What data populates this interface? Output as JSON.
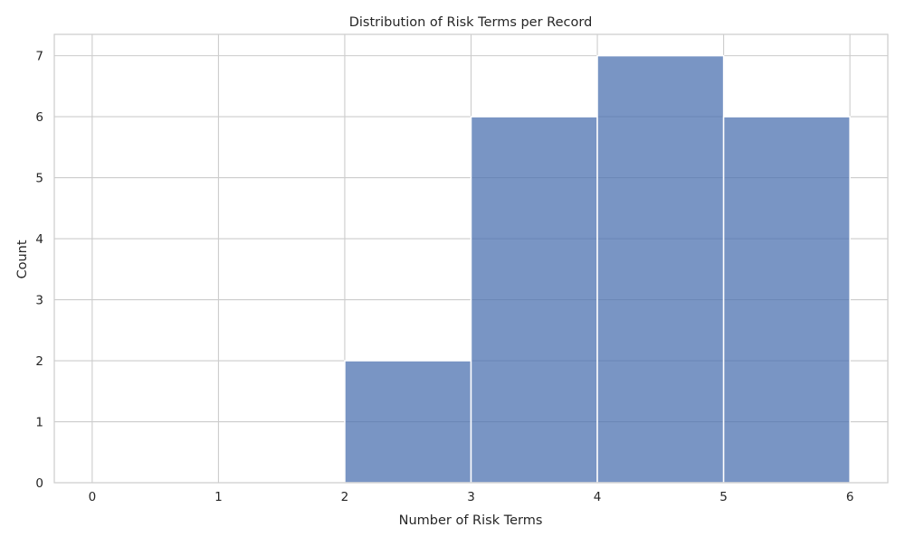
{
  "chart_data": {
    "type": "bar",
    "title": "Distribution of Risk Terms per Record",
    "xlabel": "Number of Risk Terms",
    "ylabel": "Count",
    "x_ticks": [
      "0",
      "1",
      "2",
      "3",
      "4",
      "5",
      "6"
    ],
    "y_ticks": [
      "0",
      "1",
      "2",
      "3",
      "4",
      "5",
      "6",
      "7"
    ],
    "bins": [
      {
        "start": 2,
        "end": 3,
        "count": 2
      },
      {
        "start": 3,
        "end": 4,
        "count": 6
      },
      {
        "start": 4,
        "end": 5,
        "count": 7
      },
      {
        "start": 5,
        "end": 6,
        "count": 6
      }
    ],
    "xlim": [
      -0.3,
      6.3
    ],
    "ylim": [
      0,
      7.35
    ],
    "grid": true,
    "legend": "none",
    "colors": {
      "bar": "#4c72b0",
      "bar_opacity": 0.75,
      "grid": "#cccccc",
      "axes_edge": "#cccccc",
      "text": "#262626"
    }
  }
}
